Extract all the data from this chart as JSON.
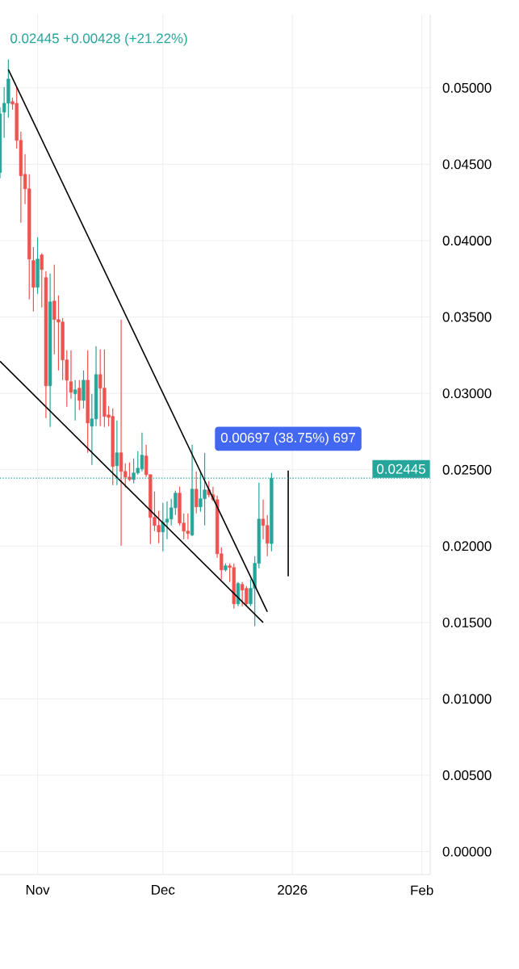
{
  "chart_data": {
    "type": "candlestick",
    "x": [
      "2025-10-23",
      "2025-10-24",
      "2025-10-25",
      "2025-10-26",
      "2025-10-27",
      "2025-10-28",
      "2025-10-29",
      "2025-10-30",
      "2025-10-31",
      "2025-11-01",
      "2025-11-02",
      "2025-11-03",
      "2025-11-04",
      "2025-11-05",
      "2025-11-06",
      "2025-11-07",
      "2025-11-08",
      "2025-11-09",
      "2025-11-10",
      "2025-11-11",
      "2025-11-12",
      "2025-11-13",
      "2025-11-14",
      "2025-11-15",
      "2025-11-16",
      "2025-11-17",
      "2025-11-18",
      "2025-11-19",
      "2025-11-20",
      "2025-11-21",
      "2025-11-22",
      "2025-11-23",
      "2025-11-24",
      "2025-11-25",
      "2025-11-26",
      "2025-11-27",
      "2025-11-28",
      "2025-11-29",
      "2025-11-30",
      "2025-12-01",
      "2025-12-02",
      "2025-12-03",
      "2025-12-04",
      "2025-12-05",
      "2025-12-06",
      "2025-12-07",
      "2025-12-08",
      "2025-12-09",
      "2025-12-10",
      "2025-12-11",
      "2025-12-12",
      "2025-12-13",
      "2025-12-14",
      "2025-12-15",
      "2025-12-16",
      "2025-12-17",
      "2025-12-18",
      "2025-12-19",
      "2025-12-20",
      "2025-12-21",
      "2025-12-22",
      "2025-12-23",
      "2025-12-24",
      "2025-12-25",
      "2025-12-26",
      "2025-12-27"
    ],
    "ohlc": [
      [
        0.04445,
        0.04873,
        0.04408,
        0.0483
      ],
      [
        0.04841,
        0.05005,
        0.04672,
        0.04899
      ],
      [
        0.04899,
        0.05185,
        0.04804,
        0.05058
      ],
      [
        0.0491,
        0.04936,
        0.04857,
        0.04894
      ],
      [
        0.04899,
        0.05005,
        0.04603,
        0.04656
      ],
      [
        0.04656,
        0.04714,
        0.04117,
        0.04424
      ],
      [
        0.04434,
        0.04566,
        0.04239,
        0.04339
      ],
      [
        0.04339,
        0.04434,
        0.03615,
        0.03879
      ],
      [
        0.03869,
        0.03958,
        0.03536,
        0.03694
      ],
      [
        0.03694,
        0.04022,
        0.03652,
        0.03879
      ],
      [
        0.03906,
        0.03916,
        0.03562,
        0.0381
      ],
      [
        0.03758,
        0.038,
        0.02838,
        0.03049
      ],
      [
        0.03049,
        0.03784,
        0.0278,
        0.03599
      ],
      [
        0.03604,
        0.03842,
        0.03256,
        0.03483
      ],
      [
        0.03483,
        0.03641,
        0.0315,
        0.03467
      ],
      [
        0.03467,
        0.03493,
        0.03086,
        0.03219
      ],
      [
        0.03219,
        0.03282,
        0.02912,
        0.03086
      ],
      [
        0.03076,
        0.03282,
        0.02965,
        0.03007
      ],
      [
        0.02997,
        0.03086,
        0.02822,
        0.03023
      ],
      [
        0.03034,
        0.03086,
        0.02891,
        0.02954
      ],
      [
        0.02954,
        0.0315,
        0.02901,
        0.03086
      ],
      [
        0.03086,
        0.03282,
        0.02611,
        0.02806
      ],
      [
        0.02785,
        0.02997,
        0.02532,
        0.02833
      ],
      [
        0.02833,
        0.03308,
        0.02785,
        0.03123
      ],
      [
        0.03123,
        0.03287,
        0.02785,
        0.03034
      ],
      [
        0.03034,
        0.03287,
        0.0278,
        0.02849
      ],
      [
        0.02859,
        0.02917,
        0.02785,
        0.02843
      ],
      [
        0.02849,
        0.02901,
        0.02399,
        0.02521
      ],
      [
        0.02526,
        0.02822,
        0.02399,
        0.02611
      ],
      [
        0.02611,
        0.03483,
        0.02003,
        0.02489
      ],
      [
        0.02489,
        0.02542,
        0.02384,
        0.02452
      ],
      [
        0.02452,
        0.02547,
        0.02426,
        0.02436
      ],
      [
        0.02436,
        0.02574,
        0.0241,
        0.02479
      ],
      [
        0.02479,
        0.02621,
        0.02468,
        0.0251
      ],
      [
        0.02505,
        0.02743,
        0.02489,
        0.02595
      ],
      [
        0.0259,
        0.02664,
        0.02452,
        0.02468
      ],
      [
        0.02468,
        0.02468,
        0.02014,
        0.02188
      ],
      [
        0.02188,
        0.02357,
        0.02098,
        0.02135
      ],
      [
        0.02135,
        0.0223,
        0.02019,
        0.02093
      ],
      [
        0.02093,
        0.02283,
        0.01966,
        0.02156
      ],
      [
        0.02156,
        0.02294,
        0.02045,
        0.02177
      ],
      [
        0.02177,
        0.0231,
        0.02135,
        0.02251
      ],
      [
        0.02251,
        0.02362,
        0.02204,
        0.02347
      ],
      [
        0.02347,
        0.02389,
        0.02135,
        0.02151
      ],
      [
        0.02151,
        0.02214,
        0.02045,
        0.02098
      ],
      [
        0.02098,
        0.02214,
        0.02045,
        0.02082
      ],
      [
        0.02072,
        0.02664,
        0.02066,
        0.02373
      ],
      [
        0.02373,
        0.02489,
        0.02214,
        0.02257
      ],
      [
        0.02257,
        0.02489,
        0.02225,
        0.0231
      ],
      [
        0.0231,
        0.02611,
        0.02135,
        0.02368
      ],
      [
        0.02368,
        0.02426,
        0.0232,
        0.02336
      ],
      [
        0.02336,
        0.02389,
        0.02294,
        0.02304
      ],
      [
        0.02304,
        0.02331,
        0.01924,
        0.0195
      ],
      [
        0.0195,
        0.01992,
        0.01781,
        0.01844
      ],
      [
        0.01844,
        0.01887,
        0.01834,
        0.01871
      ],
      [
        0.01871,
        0.01887,
        0.01765,
        0.0186
      ],
      [
        0.0186,
        0.01887,
        0.01591,
        0.01622
      ],
      [
        0.01622,
        0.01765,
        0.01607,
        0.01755
      ],
      [
        0.01749,
        0.01765,
        0.01607,
        0.01712
      ],
      [
        0.01723,
        0.01739,
        0.01607,
        0.01622
      ],
      [
        0.01622,
        0.01781,
        0.01607,
        0.01723
      ],
      [
        0.01723,
        0.01934,
        0.01475,
        0.01887
      ],
      [
        0.01887,
        0.02415,
        0.01855,
        0.02177
      ],
      [
        0.02177,
        0.02304,
        0.02045,
        0.02135
      ],
      [
        0.02135,
        0.02204,
        0.01934,
        0.02019
      ],
      [
        0.02017,
        0.02479,
        0.01966,
        0.02445
      ]
    ],
    "colors": [
      "#26a69a",
      "#26a69a",
      "#26a69a",
      "#ef5350",
      "#ef5350",
      "#ef5350",
      "#ef5350",
      "#ef5350",
      "#ef5350",
      "#26a69a",
      "#ef5350",
      "#ef5350",
      "#26a69a",
      "#ef5350",
      "#ef5350",
      "#ef5350",
      "#ef5350",
      "#ef5350",
      "#26a69a",
      "#ef5350",
      "#26a69a",
      "#ef5350",
      "#26a69a",
      "#26a69a",
      "#ef5350",
      "#ef5350",
      "#ef5350",
      "#ef5350",
      "#26a69a",
      "#ef5350",
      "#ef5350",
      "#ef5350",
      "#26a69a",
      "#26a69a",
      "#26a69a",
      "#ef5350",
      "#ef5350",
      "#ef5350",
      "#ef5350",
      "#26a69a",
      "#26a69a",
      "#26a69a",
      "#26a69a",
      "#ef5350",
      "#ef5350",
      "#ef5350",
      "#26a69a",
      "#ef5350",
      "#26a69a",
      "#26a69a",
      "#ef5350",
      "#ef5350",
      "#ef5350",
      "#ef5350",
      "#26a69a",
      "#ef5350",
      "#ef5350",
      "#26a69a",
      "#ef5350",
      "#ef5350",
      "#26a69a",
      "#26a69a",
      "#26a69a",
      "#ef5350",
      "#ef5350",
      "#26a69a"
    ],
    "series": [
      {
        "type": "line",
        "color": "#000000",
        "x": [
          "2025-10-25",
          "2025-12-26"
        ],
        "values": [
          0.0512,
          0.0157
        ]
      },
      {
        "type": "line",
        "color": "#000000",
        "x": [
          "2025-10-23",
          "2025-12-25"
        ],
        "values": [
          0.0321,
          0.015
        ]
      },
      {
        "type": "line",
        "color": "#000000",
        "x": [
          "2025-12-31",
          "2025-12-31"
        ],
        "values": [
          0.01802,
          0.02495
        ]
      }
    ],
    "xlim": [
      "2025-10-23",
      "2026-02-03"
    ],
    "xticks": [
      {
        "value": "2025-11-01",
        "label": "Nov"
      },
      {
        "value": "2025-12-01",
        "label": "Dec"
      },
      {
        "value": "2026-01-01",
        "label": "2026"
      },
      {
        "value": "2026-02-01",
        "label": "Feb"
      }
    ],
    "ylim": [
      -0.0015,
      0.0548
    ],
    "yticks": [
      {
        "value": 0,
        "label": "0.00000"
      },
      {
        "value": 0.005,
        "label": "0.00500"
      },
      {
        "value": 0.01,
        "label": "0.01000"
      },
      {
        "value": 0.015,
        "label": "0.01500"
      },
      {
        "value": 0.02,
        "label": "0.02000"
      },
      {
        "value": 0.025,
        "label": "0.02500"
      },
      {
        "value": 0.03,
        "label": "0.03000"
      },
      {
        "value": 0.035,
        "label": "0.03500"
      },
      {
        "value": 0.04,
        "label": "0.04000"
      },
      {
        "value": 0.045,
        "label": "0.04500"
      },
      {
        "value": 0.05,
        "label": "0.05000"
      }
    ],
    "grid": true,
    "ref_lines": [
      {
        "axis": "y",
        "value": 0.02445,
        "label": "0.02445",
        "color": "#26a69a",
        "line_style": "dotted"
      }
    ],
    "annotations": [
      "0.02445 +0.00428 (+21.22%)",
      "0.00697 (38.75%) 697"
    ]
  }
}
